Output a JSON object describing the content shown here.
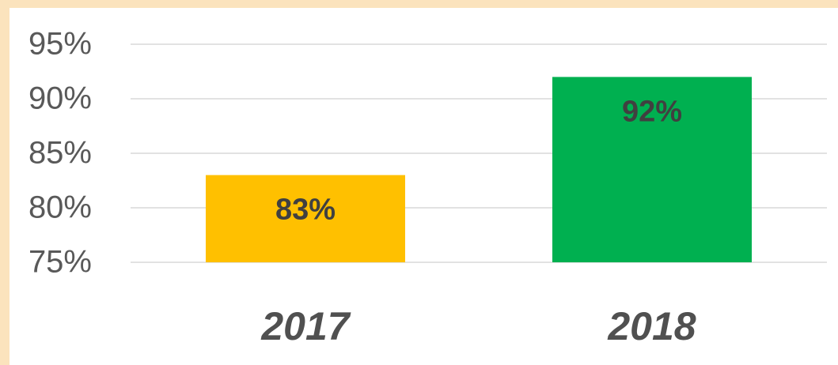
{
  "chart_data": {
    "type": "bar",
    "categories": [
      "2017",
      "2018"
    ],
    "values": [
      83,
      92
    ],
    "value_labels": [
      "83%",
      "92%"
    ],
    "colors": [
      "#ffc000",
      "#00b050"
    ],
    "ylim": [
      75,
      95
    ],
    "yticks": [
      {
        "value": 75,
        "label": "75%"
      },
      {
        "value": 80,
        "label": "80%"
      },
      {
        "value": 85,
        "label": "85%"
      },
      {
        "value": 90,
        "label": "90%"
      },
      {
        "value": 95,
        "label": "95%"
      }
    ],
    "grid": true
  }
}
